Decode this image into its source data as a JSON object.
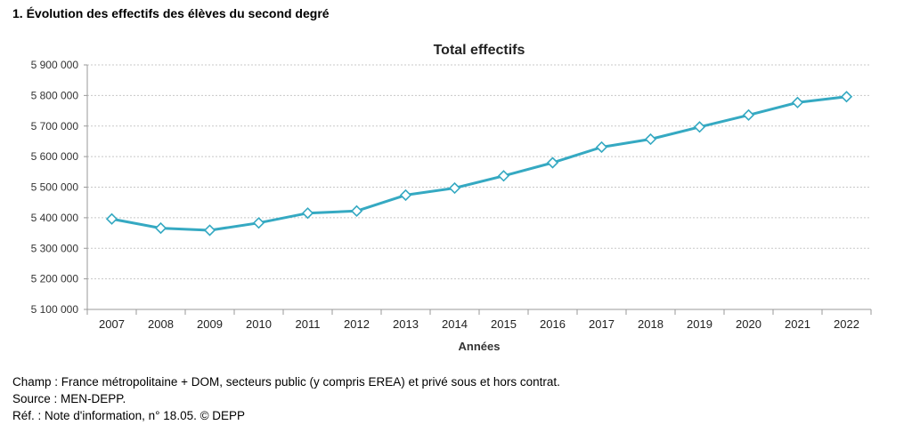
{
  "figure_title": "1. Évolution des effectifs des élèves du second degré",
  "notes": {
    "champ": "Champ : France métropolitaine + DOM, secteurs public (y compris EREA) et privé sous et hors contrat.",
    "source": "Source : MEN-DEPP.",
    "ref": "Réf. : Note d'information, n° 18.05. © DEPP"
  },
  "chart_data": {
    "type": "line",
    "title": "Total effectifs",
    "xlabel": "Années",
    "ylabel": "",
    "categories": [
      "2007",
      "2008",
      "2009",
      "2010",
      "2011",
      "2012",
      "2013",
      "2014",
      "2015",
      "2016",
      "2017",
      "2018",
      "2019",
      "2020",
      "2021",
      "2022"
    ],
    "series": [
      {
        "values": [
          5396000,
          5366000,
          5359000,
          5383000,
          5415000,
          5422000,
          5474000,
          5497000,
          5537000,
          5580000,
          5631000,
          5657000,
          5697000,
          5736000,
          5777000,
          5796000
        ]
      }
    ],
    "ylim": [
      5100000,
      5900000
    ],
    "yticks": [
      5100000,
      5200000,
      5300000,
      5400000,
      5500000,
      5600000,
      5700000,
      5800000,
      5900000
    ],
    "ytick_labels": [
      "5 100 000",
      "5 200 000",
      "5 300 000",
      "5 400 000",
      "5 500 000",
      "5 600 000",
      "5 700 000",
      "5 800 000",
      "5 900 000"
    ],
    "grid": true,
    "line_color": "#35a9c2",
    "marker": "diamond",
    "marker_fill": "#ffffff"
  }
}
